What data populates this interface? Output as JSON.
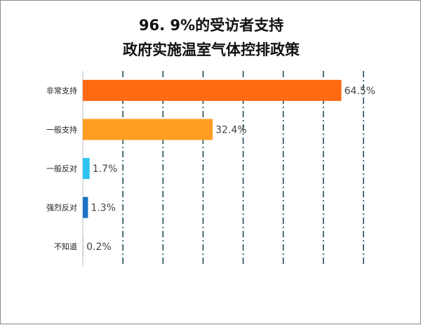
{
  "chart_data": {
    "type": "bar",
    "orientation": "horizontal",
    "title_lines": [
      "96. 9%的受访者支持",
      "政府实施温室气体控排政策"
    ],
    "categories": [
      "非常支持",
      "一般支持",
      "一般反对",
      "强烈反对",
      "不知道"
    ],
    "values": [
      64.5,
      32.4,
      1.7,
      1.3,
      0.2
    ],
    "value_labels": [
      "64.5%",
      "32.4%",
      "1.7%",
      "1.3%",
      "0.2%"
    ],
    "colors": [
      "#ff6a13",
      "#ff9d22",
      "#2ec4f2",
      "#1a72c4",
      "#cccccc"
    ],
    "xlim": [
      0,
      70
    ],
    "gridlines": "vertical dash-dot",
    "gridline_color": "#1f4e5a",
    "legend": "none",
    "xlabel": "",
    "ylabel": ""
  }
}
